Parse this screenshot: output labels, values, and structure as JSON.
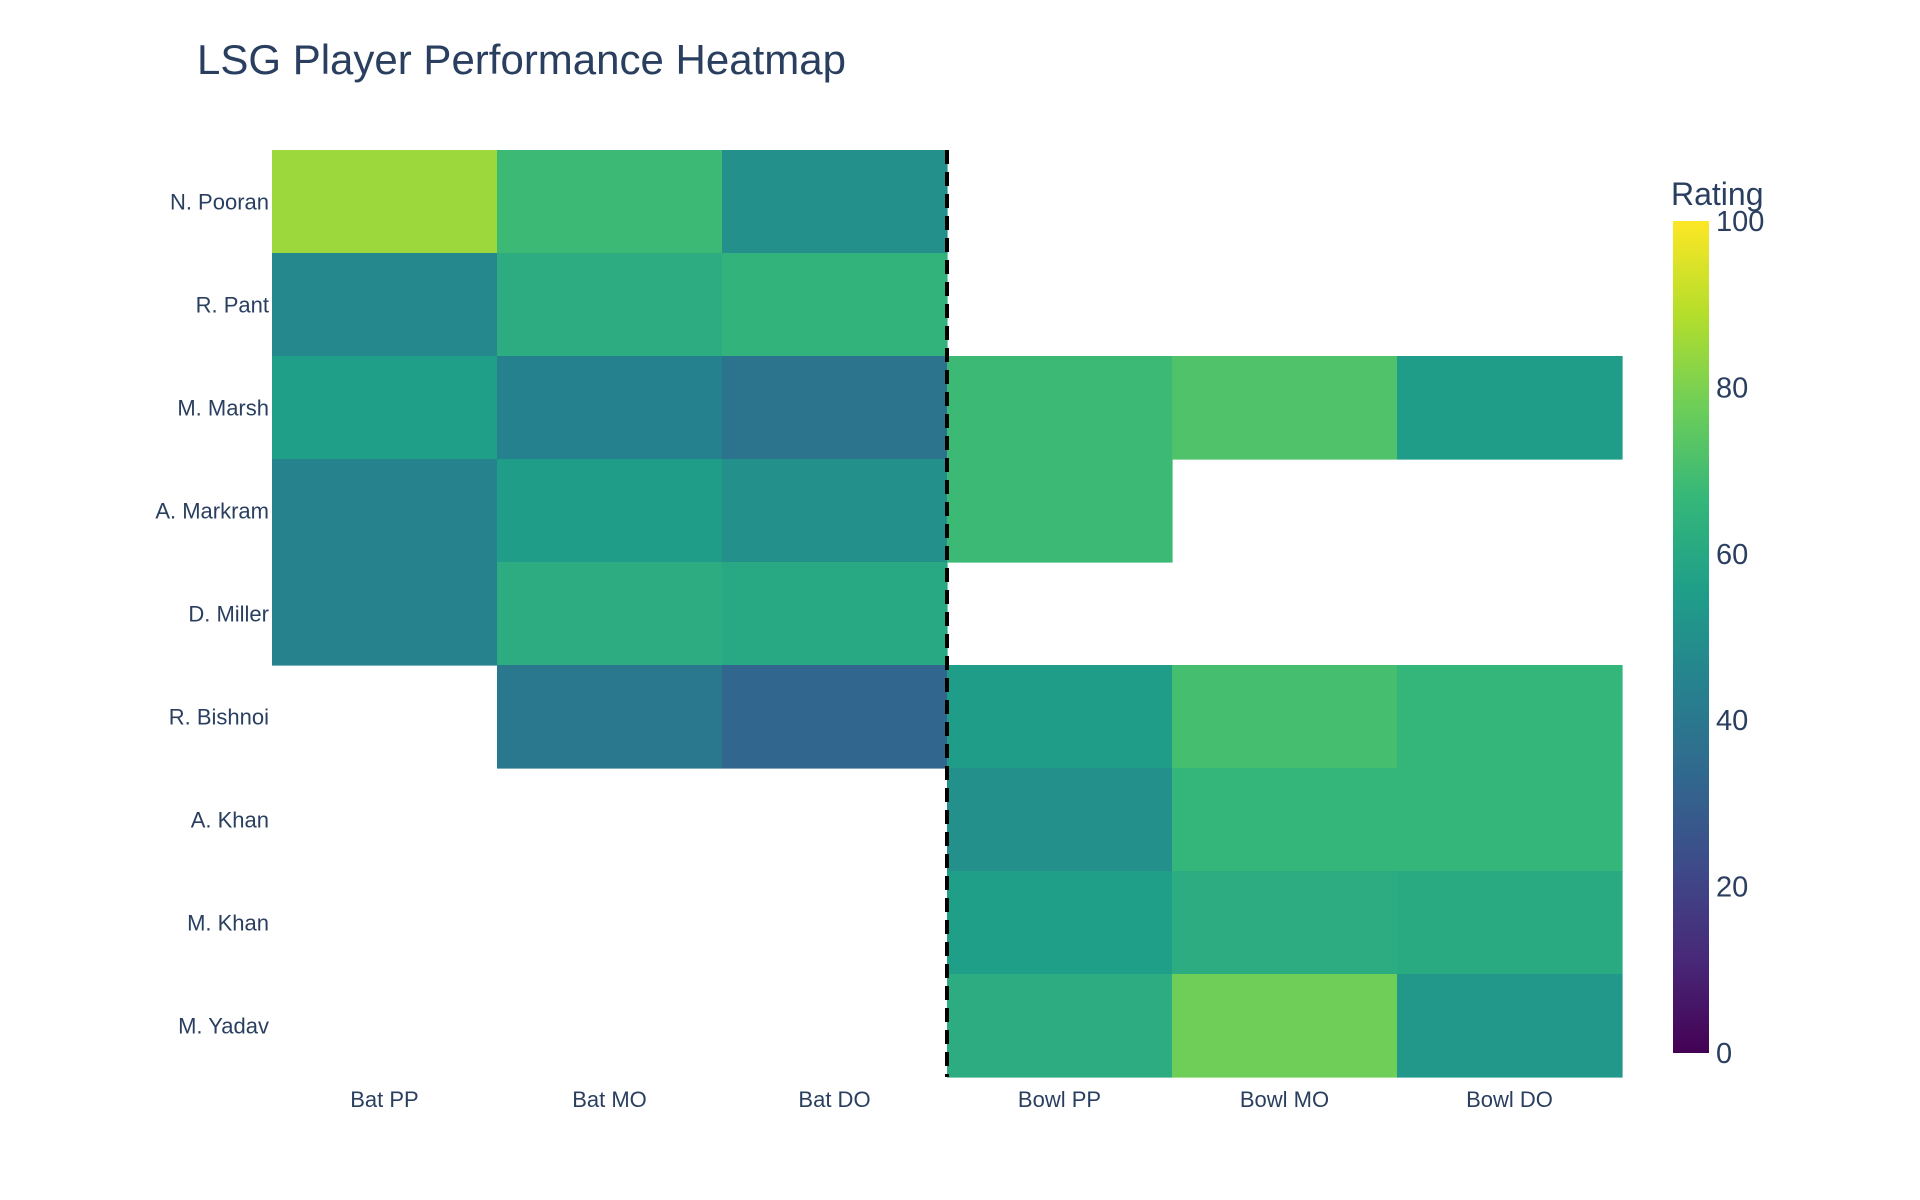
{
  "chart_data": {
    "type": "heatmap",
    "title": "LSG Player Performance Heatmap",
    "x_categories": [
      "Bat PP",
      "Bat MO",
      "Bat DO",
      "Bowl PP",
      "Bowl MO",
      "Bowl DO"
    ],
    "y_categories": [
      "N. Pooran",
      "R. Pant",
      "M. Marsh",
      "A. Markram",
      "D. Miller",
      "R. Bishnoi",
      "A. Khan",
      "M. Khan",
      "M. Yadav"
    ],
    "z": [
      [
        85,
        68,
        50,
        null,
        null,
        null
      ],
      [
        47,
        62,
        65,
        null,
        null,
        null
      ],
      [
        56,
        44,
        38,
        68,
        72,
        55
      ],
      [
        45,
        55,
        50,
        68,
        null,
        null
      ],
      [
        45,
        62,
        60,
        null,
        null,
        null
      ],
      [
        null,
        40,
        33,
        55,
        70,
        66
      ],
      [
        null,
        null,
        null,
        50,
        66,
        66
      ],
      [
        null,
        null,
        null,
        56,
        62,
        61
      ],
      [
        null,
        null,
        null,
        62,
        78,
        53
      ]
    ],
    "colorscale": "Viridis",
    "zlim": [
      0,
      100
    ],
    "colorbar": {
      "title": "Rating",
      "ticks": [
        "0",
        "20",
        "40",
        "60",
        "80",
        "100"
      ]
    },
    "separator_after_category": "Bat DO"
  }
}
